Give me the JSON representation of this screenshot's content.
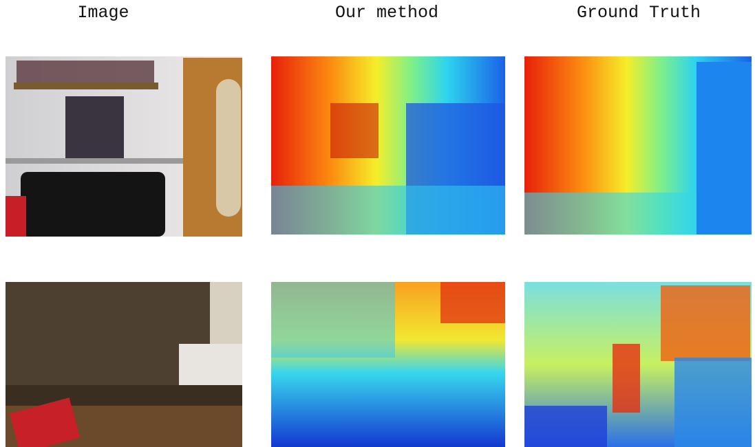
{
  "columns": [
    "Image",
    "Our method",
    "Ground Truth"
  ]
}
